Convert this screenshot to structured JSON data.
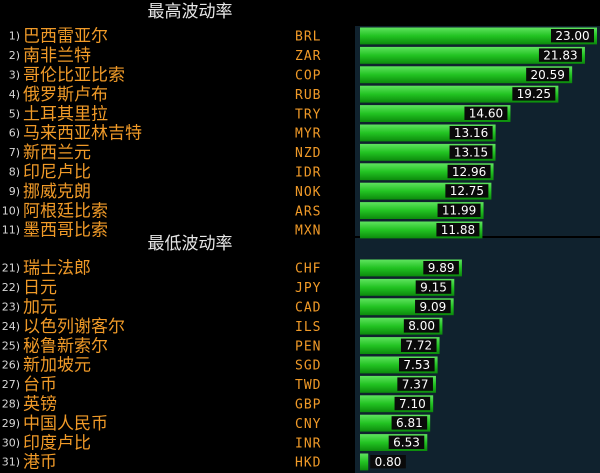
{
  "colors": {
    "background": "#000000",
    "bar": "#22c322",
    "bar_top": "#5fe35f",
    "bar_bottom": "#0c8a0c",
    "value_box": "#0a0a0a",
    "band": "#10222e",
    "name_text": "#f09a28",
    "title_text": "#e6e6e6",
    "rank_text": "#d8d8d8",
    "value_text": "#ffffff"
  },
  "chart_data": [
    {
      "type": "bar",
      "orientation": "horizontal",
      "title": "最高波动率",
      "ranks": [
        "1)",
        "2)",
        "3)",
        "4)",
        "5)",
        "6)",
        "7)",
        "8)",
        "9)",
        "10)",
        "11)"
      ],
      "categories": [
        "巴西雷亚尔",
        "南非兰特",
        "哥伦比亚比索",
        "俄罗斯卢布",
        "土耳其里拉",
        "马来西亚林吉特",
        "新西兰元",
        "印尼卢比",
        "挪威克朗",
        "阿根廷比索",
        "墨西哥比索"
      ],
      "codes": [
        "BRL",
        "ZAR",
        "COP",
        "RUB",
        "TRY",
        "MYR",
        "NZD",
        "IDR",
        "NOK",
        "ARS",
        "MXN"
      ],
      "labels": [
        "23.00",
        "21.83",
        "20.59",
        "19.25",
        "14.60",
        "13.16",
        "13.15",
        "12.96",
        "12.75",
        "11.99",
        "11.88"
      ],
      "values": [
        23.0,
        21.83,
        20.59,
        19.25,
        14.6,
        13.16,
        13.15,
        12.96,
        12.75,
        11.99,
        11.88
      ],
      "xlim": [
        0,
        23
      ]
    },
    {
      "type": "bar",
      "orientation": "horizontal",
      "title": "最低波动率",
      "ranks": [
        "21)",
        "22)",
        "23)",
        "24)",
        "25)",
        "26)",
        "27)",
        "28)",
        "29)",
        "30)",
        "31)"
      ],
      "categories": [
        "瑞士法郎",
        "日元",
        "加元",
        "以色列谢客尔",
        "秘鲁新索尔",
        "新加坡元",
        "台币",
        "英镑",
        "中国人民币",
        "印度卢比",
        "港币"
      ],
      "codes": [
        "CHF",
        "JPY",
        "CAD",
        "ILS",
        "PEN",
        "SGD",
        "TWD",
        "GBP",
        "CNY",
        "INR",
        "HKD"
      ],
      "labels": [
        "9.89",
        "9.15",
        "9.09",
        "8.00",
        "7.72",
        "7.53",
        "7.37",
        "7.10",
        "6.81",
        "6.53",
        "0.80"
      ],
      "values": [
        9.89,
        9.15,
        9.09,
        8.0,
        7.72,
        7.53,
        7.37,
        7.1,
        6.81,
        6.53,
        0.8
      ],
      "xlim": [
        0,
        23
      ]
    }
  ]
}
